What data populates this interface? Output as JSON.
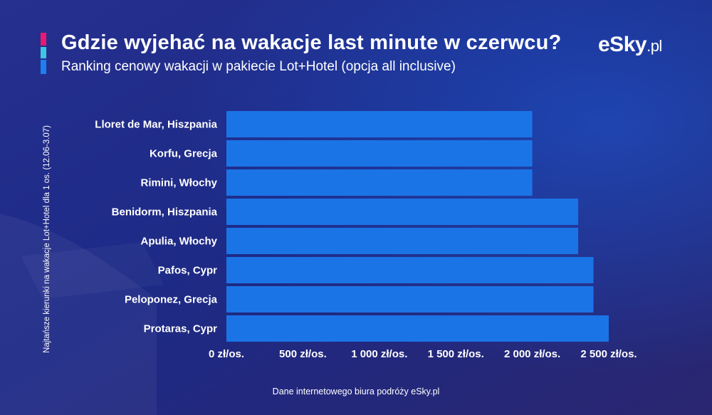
{
  "header": {
    "title": "Gdzie wyjehać na wakacje last minute w czerwcu?",
    "subtitle": "Ranking cenowy wakacji w pakiecie Lot+Hotel (opcja all inclusive)",
    "accent_colors": [
      "#e8196e",
      "#3ec6e0",
      "#1e7ff0"
    ]
  },
  "logo": {
    "main": "eSky",
    "suffix": ".pl"
  },
  "footer": {
    "source": "Dane internetowego biura podróży eSky.pl"
  },
  "colors": {
    "bar": "#1b74e6",
    "background": "#1f2a8c",
    "text": "#ffffff"
  },
  "chart_data": {
    "type": "bar",
    "orientation": "horizontal",
    "title": "",
    "xlabel": "",
    "ylabel": "Najtańsze kierunki na wakacje Lot+Hotel dla 1 os. (12.06-3.07)",
    "categories": [
      "Lloret de Mar, Hiszpania",
      "Korfu, Grecja",
      "Rimini, Włochy",
      "Benidorm, Hiszpania",
      "Apulia, Włochy",
      "Pafos, Cypr",
      "Peloponez, Grecja",
      "Protaras, Cypr"
    ],
    "values": [
      2000,
      2000,
      2000,
      2300,
      2300,
      2400,
      2400,
      2500
    ],
    "unit": "zł/os.",
    "xlim": [
      0,
      2500
    ],
    "xticks": [
      0,
      500,
      1000,
      1500,
      2000,
      2500
    ],
    "xtick_labels": [
      "0 zł/os.",
      "500 zł/os.",
      "1 000 zł/os.",
      "1 500 zł/os.",
      "2 000 zł/os.",
      "2 500 zł/os."
    ],
    "grid": false,
    "legend": "none"
  }
}
